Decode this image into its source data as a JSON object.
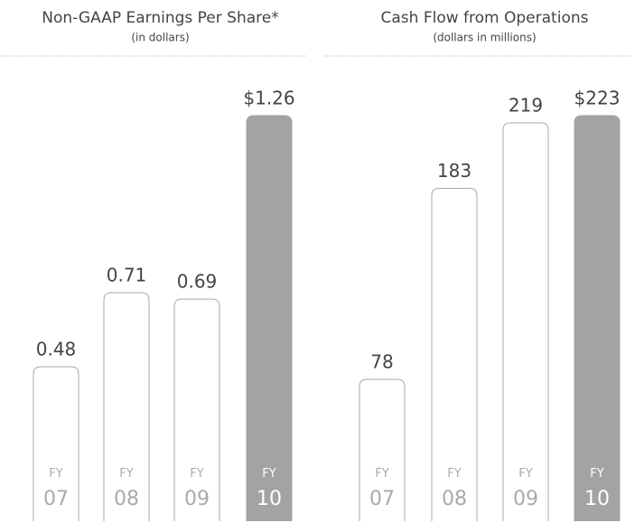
{
  "chart_data": [
    {
      "type": "bar",
      "title": "Non-GAAP Earnings Per Share*",
      "subtitle": "(in dollars)",
      "categories": [
        "FY\n07",
        "FY\n08",
        "FY\n09",
        "FY\n10"
      ],
      "values": [
        0.48,
        0.71,
        0.69,
        1.26
      ],
      "value_labels": [
        "0.48",
        "0.71",
        "0.69",
        "$1.26"
      ],
      "colors": [
        "#ffffff",
        "#ffffff",
        "#ffffff",
        "#a3a3a3"
      ]
    },
    {
      "type": "bar",
      "title": "Cash Flow from Operations",
      "subtitle": "(dollars in millions)",
      "categories": [
        "FY\n07",
        "FY\n08",
        "FY\n09",
        "FY\n10"
      ],
      "values": [
        78,
        183,
        219,
        223
      ],
      "value_labels": [
        "78",
        "183",
        "219",
        "$223"
      ],
      "colors": [
        "#ffffff",
        "#ffffff",
        "#ffffff",
        "#a3a3a3"
      ]
    }
  ]
}
